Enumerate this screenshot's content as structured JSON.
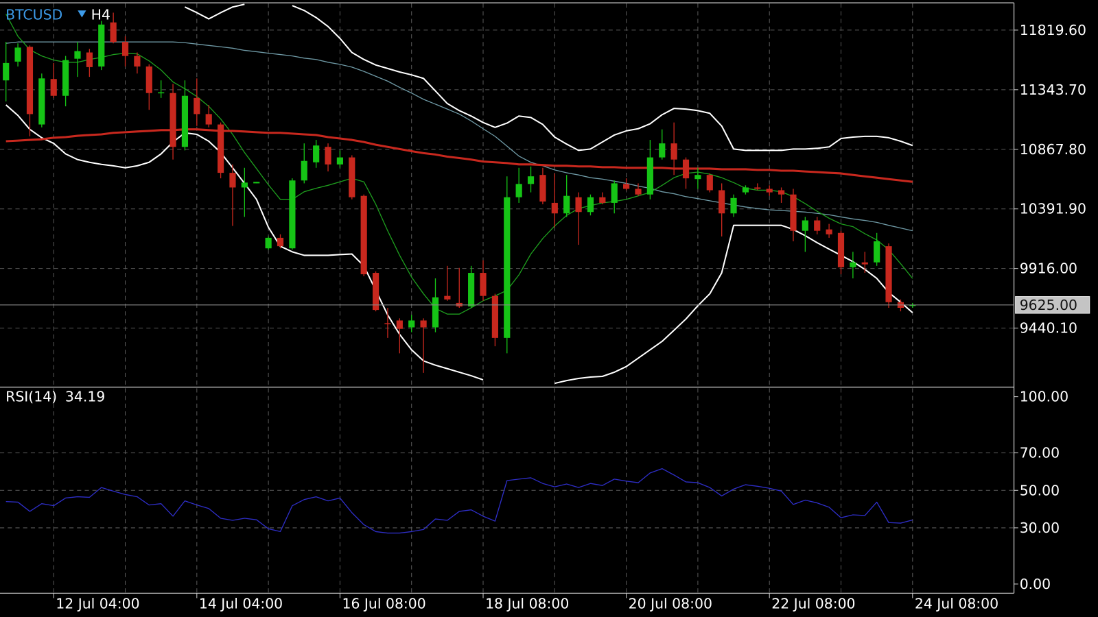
{
  "chart_data": [
    {
      "type": "candlestick",
      "symbol": "BTCUSD",
      "timeframe": "H4",
      "categories": [
        null,
        null,
        null,
        null,
        "12 Jul 04:00",
        null,
        null,
        null,
        null,
        null,
        null,
        null,
        null,
        null,
        null,
        null,
        "14 Jul 04:00",
        null,
        null,
        null,
        null,
        null,
        null,
        null,
        null,
        null,
        null,
        null,
        "16 Jul 08:00",
        null,
        null,
        null,
        null,
        null,
        null,
        null,
        null,
        null,
        null,
        null,
        "18 Jul 08:00",
        null,
        null,
        null,
        null,
        null,
        null,
        null,
        null,
        null,
        null,
        null,
        "20 Jul 08:00",
        null,
        null,
        null,
        null,
        null,
        null,
        null,
        null,
        null,
        null,
        null,
        "22 Jul 08:00",
        null,
        null,
        null,
        null,
        null,
        null,
        null,
        null,
        null,
        null,
        null,
        "24 Jul 08:00"
      ],
      "open": [
        11418,
        11568,
        11686,
        11066,
        11429,
        11295,
        11591,
        11641,
        11529,
        11881,
        11725,
        11613,
        11529,
        11317,
        11317,
        10887,
        11278,
        11149,
        11066,
        10680,
        10563,
        10596,
        10077,
        10161,
        10077,
        10619,
        10764,
        10887,
        10747,
        10803,
        10496,
        9881,
        9479,
        9501,
        9446,
        9501,
        9446,
        9697,
        9641,
        9613,
        9881,
        9697,
        9362,
        10485,
        10591,
        10663,
        10440,
        10356,
        10485,
        10367,
        10485,
        10440,
        10591,
        10552,
        10507,
        10803,
        10915,
        10786,
        10630,
        10663,
        10541,
        10356,
        10524,
        10563,
        10552,
        10541,
        10507,
        10217,
        10300,
        10228,
        10200,
        9926,
        9965,
        9965,
        10094,
        9647,
        9619
      ],
      "high": [
        11725,
        11714,
        11697,
        11473,
        11557,
        11613,
        11725,
        11669,
        11892,
        11959,
        11770,
        11641,
        11546,
        11418,
        11390,
        11418,
        11434,
        11222,
        11082,
        10747,
        10720,
        10608,
        10172,
        10189,
        10636,
        10915,
        10943,
        10915,
        10859,
        10820,
        10507,
        9893,
        9602,
        9518,
        9546,
        9518,
        9837,
        9937,
        9921,
        9937,
        9982,
        9714,
        10652,
        10720,
        10731,
        10720,
        10675,
        10663,
        10524,
        10507,
        10524,
        10619,
        10636,
        10596,
        10943,
        11027,
        11082,
        10803,
        10720,
        10675,
        10596,
        10507,
        10580,
        10596,
        10580,
        10563,
        10552,
        10328,
        10328,
        10272,
        10217,
        10049,
        10049,
        10200,
        10116,
        9669,
        9641
      ],
      "low": [
        11250,
        11529,
        10971,
        11043,
        11278,
        11211,
        11446,
        11446,
        11501,
        11714,
        11529,
        11473,
        11183,
        11278,
        10786,
        10859,
        11054,
        11043,
        10636,
        10256,
        10328,
        10596,
        10066,
        10077,
        10066,
        10596,
        10720,
        10691,
        10720,
        10468,
        9854,
        9574,
        9362,
        9239,
        9407,
        9083,
        9407,
        9658,
        9602,
        9602,
        9658,
        9295,
        9239,
        10440,
        10524,
        10429,
        10245,
        10328,
        10105,
        10340,
        10429,
        10356,
        10541,
        10496,
        10468,
        10786,
        10663,
        10552,
        10552,
        10524,
        10172,
        10328,
        10507,
        10541,
        10496,
        10440,
        10133,
        10049,
        10189,
        10161,
        9870,
        9837,
        9881,
        9937,
        9602,
        9574,
        9602
      ],
      "close": [
        11557,
        11680,
        11149,
        11434,
        11295,
        11580,
        11652,
        11524,
        11864,
        11725,
        11613,
        11529,
        11317,
        11323,
        10887,
        11295,
        11149,
        11066,
        10680,
        10563,
        10602,
        10608,
        10161,
        10094,
        10619,
        10775,
        10898,
        10747,
        10803,
        10485,
        9870,
        9585,
        9474,
        9434,
        9501,
        9446,
        9686,
        9669,
        9613,
        9881,
        9697,
        9362,
        10485,
        10591,
        10652,
        10451,
        10356,
        10496,
        10367,
        10485,
        10440,
        10596,
        10552,
        10507,
        10803,
        10915,
        10786,
        10636,
        10663,
        10541,
        10356,
        10479,
        10563,
        10552,
        10524,
        10507,
        10217,
        10300,
        10217,
        10189,
        9926,
        9965,
        9949,
        10133,
        9647,
        9602,
        9625
      ],
      "up_color": "#16c416",
      "down_color": "#c8281e",
      "lines": [
        {
          "color": "#ffffff",
          "line_width": 2,
          "values": [
            null,
            null,
            null,
            null,
            null,
            null,
            null,
            null,
            null,
            null,
            null,
            null,
            null,
            null,
            null,
            12004,
            11959,
            11909,
            11959,
            12004,
            12026,
            null,
            null,
            null,
            12015,
            11976,
            11920,
            11848,
            11753,
            11641,
            11585,
            11541,
            11513,
            11485,
            11462,
            11434,
            11334,
            11233,
            11177,
            11133,
            11082,
            11043,
            11077,
            11133,
            11122,
            11066,
            10965,
            10909,
            10859,
            10870,
            10926,
            10982,
            11015,
            11032,
            11071,
            11144,
            11194,
            11189,
            11177,
            11155,
            11054,
            10870,
            10859,
            10859,
            10859,
            10859,
            10870,
            10870,
            10876,
            10887,
            10954,
            10965,
            10971,
            10971,
            10960,
            10932,
            10898
          ]
        },
        {
          "color": "#6f9aa6",
          "line_width": 1.3,
          "values": [
            11714,
            11725,
            11725,
            11725,
            11725,
            11725,
            11725,
            11725,
            11725,
            11725,
            11725,
            11725,
            11725,
            11725,
            11725,
            11719,
            11708,
            11697,
            11686,
            11675,
            11658,
            11647,
            11635,
            11624,
            11613,
            11596,
            11585,
            11563,
            11546,
            11524,
            11490,
            11451,
            11412,
            11362,
            11317,
            11267,
            11228,
            11189,
            11149,
            11094,
            11032,
            10971,
            10893,
            10814,
            10764,
            10736,
            10703,
            10680,
            10663,
            10641,
            10630,
            10613,
            10596,
            10574,
            10557,
            10529,
            10513,
            10490,
            10474,
            10457,
            10440,
            10423,
            10407,
            10395,
            10384,
            10379,
            10373,
            10367,
            10356,
            10345,
            10328,
            10312,
            10300,
            10284,
            10261,
            10239,
            10217
          ]
        },
        {
          "color": "#ffffff",
          "line_width": 2,
          "values": [
            11222,
            11138,
            11027,
            10960,
            10915,
            10831,
            10786,
            10764,
            10747,
            10736,
            10720,
            10736,
            10764,
            10831,
            10926,
            10999,
            10987,
            10932,
            10842,
            10720,
            10596,
            10468,
            10245,
            10094,
            10049,
            10021,
            10021,
            10021,
            10027,
            10032,
            9937,
            9742,
            9546,
            9390,
            9267,
            9178,
            9144,
            9116,
            9088,
            9060,
            9027,
            null,
            null,
            null,
            null,
            null,
            8999,
            9021,
            9038,
            9049,
            9055,
            9088,
            9133,
            9200,
            9267,
            9334,
            9423,
            9513,
            9619,
            9714,
            9881,
            10261,
            10261,
            10261,
            10261,
            10261,
            10228,
            10178,
            10122,
            10071,
            10021,
            9971,
            9909,
            9837,
            9725,
            9647,
            9563
          ]
        },
        {
          "color": "#1e9e1e",
          "line_width": 1.3,
          "values": [
            11948,
            11770,
            11663,
            11613,
            11580,
            11563,
            11563,
            11585,
            11602,
            11624,
            11635,
            11630,
            11574,
            11501,
            11406,
            11351,
            11289,
            11211,
            11110,
            10987,
            10842,
            10714,
            10585,
            10468,
            10468,
            10529,
            10557,
            10580,
            10608,
            10636,
            10608,
            10429,
            10217,
            10021,
            9848,
            9714,
            9597,
            9552,
            9552,
            9602,
            9658,
            9697,
            9742,
            9865,
            10032,
            10155,
            10256,
            10340,
            10395,
            10418,
            10440,
            10451,
            10468,
            10496,
            10524,
            10580,
            10641,
            10675,
            10686,
            10669,
            10641,
            10602,
            10557,
            10541,
            10541,
            10529,
            10490,
            10434,
            10373,
            10317,
            10272,
            10250,
            10194,
            10144,
            10066,
            9954,
            9837
          ]
        },
        {
          "color": "#c8281e",
          "line_width": 3,
          "values": [
            10932,
            10937,
            10943,
            10948,
            10960,
            10965,
            10976,
            10982,
            10987,
            10999,
            11004,
            11010,
            11015,
            11021,
            11021,
            11027,
            11027,
            11021,
            11015,
            11015,
            11010,
            11004,
            10999,
            10999,
            10993,
            10987,
            10982,
            10965,
            10954,
            10943,
            10926,
            10904,
            10887,
            10870,
            10853,
            10837,
            10826,
            10809,
            10798,
            10786,
            10770,
            10764,
            10758,
            10747,
            10747,
            10742,
            10736,
            10736,
            10731,
            10731,
            10725,
            10725,
            10720,
            10720,
            10720,
            10720,
            10714,
            10714,
            10714,
            10714,
            10708,
            10708,
            10708,
            10703,
            10703,
            10697,
            10697,
            10691,
            10686,
            10680,
            10675,
            10663,
            10652,
            10641,
            10630,
            10619,
            10608
          ]
        }
      ],
      "current_price": {
        "value": 9625,
        "label": "9625.00"
      },
      "ylim": [
        8971,
        12032
      ],
      "yticks": [
        {
          "value": 9440.1,
          "label": "9440.10"
        },
        {
          "value": 9916,
          "label": "9916.00"
        },
        {
          "value": 10391.9,
          "label": "10391.90"
        },
        {
          "value": 10867.8,
          "label": "10867.80"
        },
        {
          "value": 11343.7,
          "label": "11343.70"
        },
        {
          "value": 11819.6,
          "label": "11819.60"
        }
      ],
      "grid": true
    },
    {
      "type": "line",
      "title": "RSI(14)",
      "series": [
        {
          "color": "#2e2ec8",
          "values": [
            44.0,
            43.7,
            38.8,
            42.9,
            41.8,
            45.9,
            46.6,
            46.3,
            51.5,
            49.6,
            47.8,
            46.6,
            42.2,
            42.9,
            36.2,
            44.4,
            42.2,
            40.3,
            35.1,
            34.0,
            35.1,
            34.3,
            29.5,
            28.0,
            41.8,
            45.1,
            46.6,
            44.4,
            45.9,
            38.1,
            31.7,
            28.0,
            27.2,
            27.2,
            28.0,
            29.1,
            34.7,
            34.0,
            38.8,
            39.6,
            36.2,
            33.6,
            55.2,
            56.0,
            56.7,
            53.7,
            51.9,
            53.4,
            51.5,
            53.7,
            52.6,
            56.0,
            54.9,
            54.1,
            59.3,
            61.6,
            58.2,
            54.5,
            54.1,
            51.5,
            47.0,
            50.7,
            53.0,
            52.2,
            51.1,
            49.6,
            42.5,
            44.8,
            43.3,
            41.0,
            35.4,
            36.9,
            36.6,
            43.7,
            32.8,
            32.5,
            34.19
          ]
        }
      ],
      "ylim": [
        -4.9,
        104.5
      ],
      "yticks": [
        {
          "value": 0,
          "label": "0.00"
        },
        {
          "value": 30,
          "label": "30.00"
        },
        {
          "value": 50,
          "label": "50.00"
        },
        {
          "value": 70,
          "label": "70.00"
        },
        {
          "value": 100,
          "label": "100.00"
        }
      ],
      "grid": true
    }
  ]
}
